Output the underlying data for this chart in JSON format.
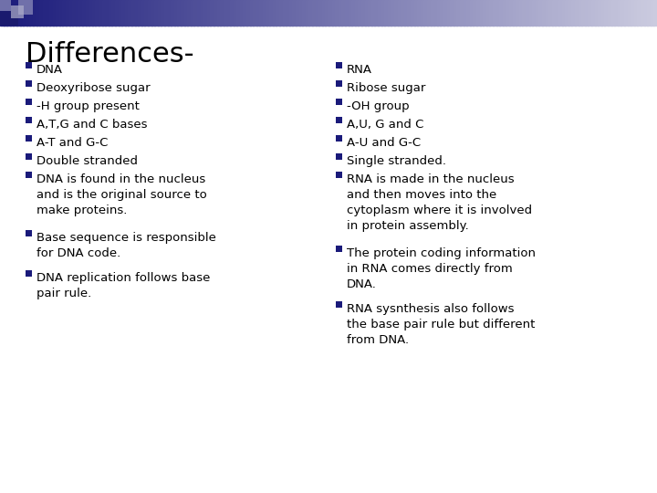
{
  "title": "Differences-",
  "title_fontsize": 22,
  "title_color": "#000000",
  "body_fontsize": 9.5,
  "body_color": "#000000",
  "bullet_color": "#1a1a7a",
  "background_color": "#ffffff",
  "left_bullets": [
    [
      "DNA"
    ],
    [
      "Deoxyribose sugar"
    ],
    [
      "-H group present"
    ],
    [
      "A,T,G and C bases"
    ],
    [
      "A-T and G-C"
    ],
    [
      "Double stranded"
    ],
    [
      "DNA is found in the nucleus",
      "and is the original source to",
      "make proteins."
    ]
  ],
  "left_bullets_extra": [
    [
      "Base sequence is responsible",
      "for DNA code."
    ],
    [
      "DNA replication follows base",
      "pair rule."
    ]
  ],
  "right_bullets": [
    [
      "RNA"
    ],
    [
      "Ribose sugar"
    ],
    [
      "-OH group"
    ],
    [
      "A,U, G and C"
    ],
    [
      "A-U and G-C"
    ],
    [
      "Single stranded."
    ],
    [
      "RNA is made in the nucleus",
      "and then moves into the",
      "cytoplasm where it is involved",
      "in protein assembly."
    ]
  ],
  "right_bullets_extra": [
    [
      "The protein coding information",
      "in RNA comes directly from",
      "DNA."
    ],
    [
      "RNA sysnthesis also follows",
      "the base pair rule but different",
      "from DNA."
    ]
  ],
  "header_bar_color_left": "#1a1a7a",
  "header_bar_color_right": "#c8c8e0",
  "corner_dark": "#1a1a6e",
  "corner_medium": "#7070aa",
  "corner_light": "#b0b0cc"
}
